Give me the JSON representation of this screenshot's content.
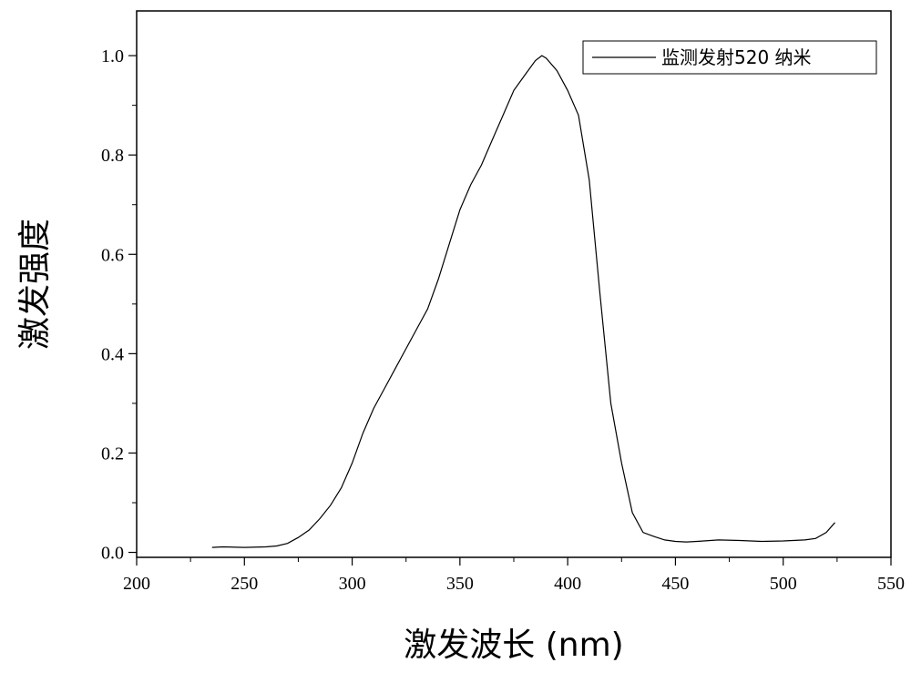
{
  "chart_data": {
    "type": "line",
    "xlabel": "激发波长 (nm)",
    "ylabel": "激发强度",
    "xlim": [
      200,
      550
    ],
    "ylim": [
      -0.01,
      1.09
    ],
    "x_ticks": [
      200,
      250,
      300,
      350,
      400,
      450,
      500,
      550
    ],
    "y_ticks": [
      0.0,
      0.2,
      0.4,
      0.6,
      0.8,
      1.0
    ],
    "x_tick_labels": [
      "200",
      "250",
      "300",
      "350",
      "400",
      "450",
      "500",
      "550"
    ],
    "y_tick_labels": [
      "0.0",
      "0.2",
      "0.4",
      "0.6",
      "0.8",
      "1.0"
    ],
    "legend_position": "top-right",
    "series": [
      {
        "name": "监测发射520 纳米",
        "color": "#000000",
        "x": [
          235,
          240,
          250,
          260,
          265,
          270,
          275,
          280,
          285,
          290,
          295,
          300,
          305,
          310,
          315,
          320,
          325,
          330,
          335,
          340,
          345,
          350,
          355,
          360,
          365,
          370,
          375,
          380,
          385,
          388,
          390,
          395,
          400,
          405,
          410,
          415,
          420,
          425,
          430,
          435,
          440,
          445,
          450,
          455,
          460,
          470,
          480,
          490,
          500,
          510,
          515,
          520,
          524
        ],
        "y": [
          0.01,
          0.011,
          0.01,
          0.011,
          0.013,
          0.018,
          0.03,
          0.045,
          0.068,
          0.095,
          0.13,
          0.18,
          0.24,
          0.29,
          0.33,
          0.37,
          0.41,
          0.45,
          0.49,
          0.55,
          0.62,
          0.69,
          0.74,
          0.78,
          0.83,
          0.88,
          0.93,
          0.96,
          0.99,
          1.0,
          0.995,
          0.97,
          0.93,
          0.88,
          0.75,
          0.52,
          0.3,
          0.18,
          0.08,
          0.04,
          0.032,
          0.025,
          0.022,
          0.021,
          0.022,
          0.025,
          0.024,
          0.022,
          0.023,
          0.025,
          0.028,
          0.04,
          0.06
        ]
      }
    ]
  }
}
